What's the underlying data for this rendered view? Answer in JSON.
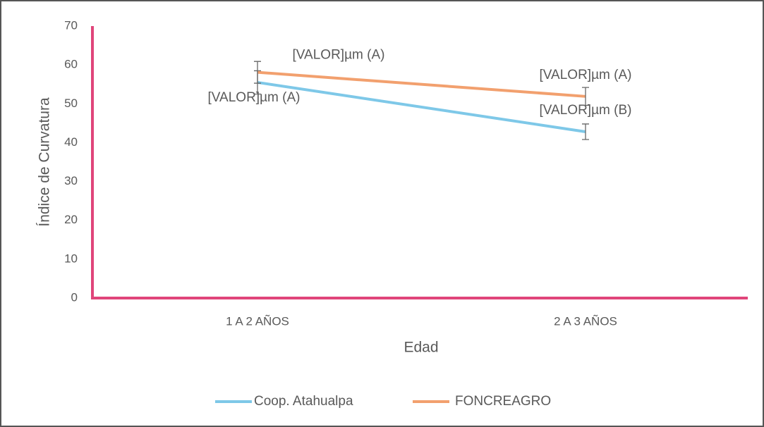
{
  "chart_data": {
    "type": "line",
    "categories": [
      "1 A 2 AÑOS",
      "2 A 3 AÑOS"
    ],
    "xlabel": "Edad",
    "ylabel": "Índice de Curvatura",
    "ylim": [
      0,
      70
    ],
    "yticks": [
      0,
      10,
      20,
      30,
      40,
      50,
      60,
      70
    ],
    "grid": false,
    "legend": "bottom",
    "series": [
      {
        "name": "Coop. Atahualpa",
        "color": "#7ec8e8",
        "values": [
          55.5,
          42.8
        ],
        "errors": [
          3,
          2
        ],
        "data_labels": [
          "[VALOR]µm (A)",
          "[VALOR]µm (B)"
        ]
      },
      {
        "name": "FONCREAGRO",
        "color": "#f2a06e",
        "values": [
          58.1,
          51.9
        ],
        "errors": [
          2.8,
          2.3
        ],
        "data_labels": [
          "[VALOR]µm (A)",
          "[VALOR]µm (A)"
        ]
      }
    ]
  }
}
